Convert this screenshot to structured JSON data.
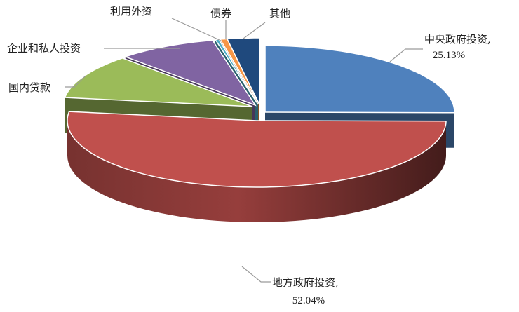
{
  "chart_data": {
    "type": "pie",
    "style": "3d-exploded",
    "title": "",
    "slices": [
      {
        "name": "中央政府投资",
        "value": 25.13,
        "label": "中央政府投资,",
        "value_label": "25.13%",
        "color": "#4F81BD"
      },
      {
        "name": "地方政府投资",
        "value": 52.04,
        "label": "地方政府投资,",
        "value_label": "52.04%",
        "color": "#C0504D"
      },
      {
        "name": "国内贷款",
        "value": 10.8,
        "label": "国内贷款",
        "color": "#9BBB59"
      },
      {
        "name": "企业和私人投资",
        "value": 8.4,
        "label": "企业和私人投资",
        "color": "#8064A2"
      },
      {
        "name": "利用外资",
        "value": 0.3,
        "label": "利用外资",
        "color": "#4BACC6"
      },
      {
        "name": "债券",
        "value": 0.6,
        "label": "债券",
        "color": "#F79646"
      },
      {
        "name": "其他",
        "value": 2.73,
        "label": "其他",
        "color": "#1F497D"
      }
    ],
    "legend": "none"
  }
}
